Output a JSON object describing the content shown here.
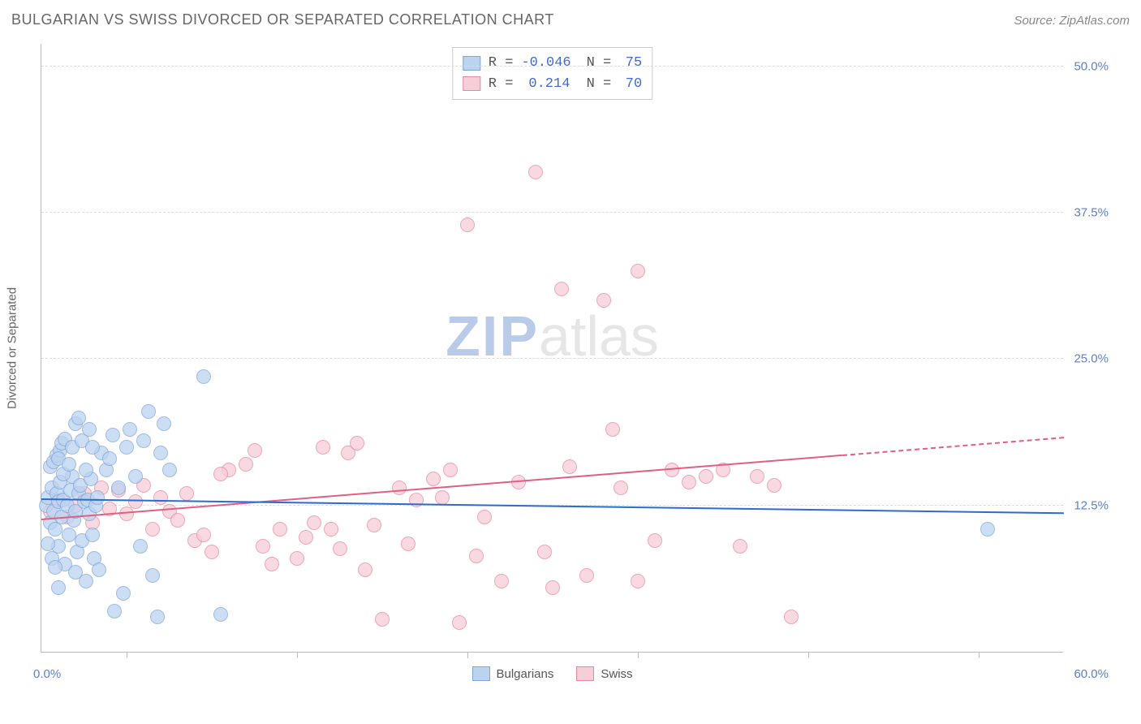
{
  "header": {
    "title": "BULGARIAN VS SWISS DIVORCED OR SEPARATED CORRELATION CHART",
    "source": "Source: ZipAtlas.com"
  },
  "watermark": {
    "part1": "ZIP",
    "part2": "atlas"
  },
  "axes": {
    "ylabel": "Divorced or Separated",
    "xlim": [
      0,
      60
    ],
    "ylim": [
      0,
      52
    ],
    "ytick_values": [
      12.5,
      25.0,
      37.5,
      50.0
    ],
    "ytick_labels": [
      "12.5%",
      "25.0%",
      "37.5%",
      "50.0%"
    ],
    "xtick_values": [
      5,
      15,
      25,
      35,
      45,
      55
    ],
    "xlabel_min": "0.0%",
    "xlabel_max": "60.0%"
  },
  "series": {
    "bulgarians": {
      "label": "Bulgarians",
      "fill": "#bcd3f0",
      "stroke": "#7fa6d9",
      "line_color": "#2e6bd1",
      "line_width": 2.5,
      "marker_radius": 9,
      "stats": {
        "R": "-0.046",
        "N": "75"
      },
      "regression": {
        "x1": 0,
        "y1": 13.0,
        "x2": 60,
        "y2": 11.8,
        "dash_from_x": null
      },
      "points": [
        [
          0.3,
          12.5
        ],
        [
          0.4,
          13.2
        ],
        [
          0.5,
          11.0
        ],
        [
          0.6,
          14.0
        ],
        [
          0.7,
          12.0
        ],
        [
          0.8,
          10.5
        ],
        [
          0.9,
          13.5
        ],
        [
          1.0,
          12.8
        ],
        [
          1.0,
          9.0
        ],
        [
          1.1,
          14.5
        ],
        [
          1.2,
          11.5
        ],
        [
          1.3,
          13.0
        ],
        [
          1.4,
          7.5
        ],
        [
          1.5,
          12.5
        ],
        [
          1.6,
          10.0
        ],
        [
          1.7,
          13.8
        ],
        [
          1.8,
          15.0
        ],
        [
          1.9,
          11.2
        ],
        [
          2.0,
          12.0
        ],
        [
          2.1,
          8.5
        ],
        [
          2.2,
          13.5
        ],
        [
          2.3,
          14.2
        ],
        [
          2.4,
          9.5
        ],
        [
          2.5,
          12.8
        ],
        [
          2.6,
          6.0
        ],
        [
          2.7,
          13.0
        ],
        [
          2.8,
          11.8
        ],
        [
          2.9,
          14.8
        ],
        [
          3.0,
          10.0
        ],
        [
          3.1,
          8.0
        ],
        [
          3.2,
          12.5
        ],
        [
          3.3,
          13.2
        ],
        [
          3.5,
          17.0
        ],
        [
          3.8,
          15.5
        ],
        [
          4.0,
          16.5
        ],
        [
          4.2,
          18.5
        ],
        [
          4.5,
          14.0
        ],
        [
          4.8,
          5.0
        ],
        [
          5.0,
          17.5
        ],
        [
          5.2,
          19.0
        ],
        [
          5.5,
          15.0
        ],
        [
          5.8,
          9.0
        ],
        [
          6.0,
          18.0
        ],
        [
          6.3,
          20.5
        ],
        [
          6.5,
          6.5
        ],
        [
          7.0,
          17.0
        ],
        [
          7.2,
          19.5
        ],
        [
          7.5,
          15.5
        ],
        [
          3.4,
          7.0
        ],
        [
          1.0,
          5.5
        ],
        [
          2.0,
          6.8
        ],
        [
          4.3,
          3.5
        ],
        [
          6.8,
          3.0
        ],
        [
          9.5,
          23.5
        ],
        [
          10.5,
          3.2
        ],
        [
          55.5,
          10.5
        ],
        [
          0.5,
          15.8
        ],
        [
          0.7,
          16.2
        ],
        [
          0.9,
          16.8
        ],
        [
          1.1,
          17.2
        ],
        [
          1.3,
          15.2
        ],
        [
          0.4,
          9.2
        ],
        [
          0.6,
          8.0
        ],
        [
          0.8,
          7.2
        ],
        [
          1.0,
          16.5
        ],
        [
          1.2,
          17.8
        ],
        [
          1.4,
          18.2
        ],
        [
          1.6,
          16.0
        ],
        [
          1.8,
          17.5
        ],
        [
          2.0,
          19.5
        ],
        [
          2.2,
          20.0
        ],
        [
          2.4,
          18.0
        ],
        [
          2.6,
          15.5
        ],
        [
          2.8,
          19.0
        ],
        [
          3.0,
          17.5
        ]
      ]
    },
    "swiss": {
      "label": "Swiss",
      "fill": "#f7cdd7",
      "stroke": "#e48aa0",
      "line_color": "#e15f82",
      "line_width": 2,
      "marker_radius": 9,
      "stats": {
        "R": "0.214",
        "N": "70"
      },
      "regression": {
        "x1": 0,
        "y1": 11.2,
        "x2": 60,
        "y2": 18.2,
        "dash_from_x": 47
      },
      "points": [
        [
          0.5,
          12.0
        ],
        [
          1.0,
          13.0
        ],
        [
          1.5,
          11.5
        ],
        [
          2.0,
          12.5
        ],
        [
          2.5,
          13.5
        ],
        [
          3.0,
          11.0
        ],
        [
          3.5,
          14.0
        ],
        [
          4.0,
          12.2
        ],
        [
          4.5,
          13.8
        ],
        [
          5.0,
          11.8
        ],
        [
          5.5,
          12.8
        ],
        [
          6.0,
          14.2
        ],
        [
          6.5,
          10.5
        ],
        [
          7.0,
          13.2
        ],
        [
          7.5,
          12.0
        ],
        [
          8.0,
          11.2
        ],
        [
          8.5,
          13.5
        ],
        [
          9.0,
          9.5
        ],
        [
          9.5,
          10.0
        ],
        [
          10.0,
          8.5
        ],
        [
          11.0,
          15.5
        ],
        [
          12.0,
          16.0
        ],
        [
          13.0,
          9.0
        ],
        [
          14.0,
          10.5
        ],
        [
          15.0,
          8.0
        ],
        [
          16.0,
          11.0
        ],
        [
          16.5,
          17.5
        ],
        [
          17.0,
          10.5
        ],
        [
          18.0,
          17.0
        ],
        [
          18.5,
          17.8
        ],
        [
          19.0,
          7.0
        ],
        [
          20.0,
          2.8
        ],
        [
          21.0,
          14.0
        ],
        [
          22.0,
          13.0
        ],
        [
          23.0,
          14.8
        ],
        [
          24.0,
          15.5
        ],
        [
          24.5,
          2.5
        ],
        [
          25.0,
          36.5
        ],
        [
          26.0,
          11.5
        ],
        [
          27.0,
          6.0
        ],
        [
          28.0,
          14.5
        ],
        [
          29.0,
          41.0
        ],
        [
          29.5,
          8.5
        ],
        [
          30.0,
          5.5
        ],
        [
          30.5,
          31.0
        ],
        [
          31.0,
          15.8
        ],
        [
          32.0,
          6.5
        ],
        [
          33.0,
          30.0
        ],
        [
          33.5,
          19.0
        ],
        [
          34.0,
          14.0
        ],
        [
          35.0,
          6.0
        ],
        [
          36.0,
          9.5
        ],
        [
          37.0,
          15.5
        ],
        [
          38.0,
          14.5
        ],
        [
          39.0,
          15.0
        ],
        [
          40.0,
          15.5
        ],
        [
          41.0,
          9.0
        ],
        [
          42.0,
          15.0
        ],
        [
          43.0,
          14.2
        ],
        [
          44.0,
          3.0
        ],
        [
          35.0,
          32.5
        ],
        [
          10.5,
          15.2
        ],
        [
          12.5,
          17.2
        ],
        [
          13.5,
          7.5
        ],
        [
          15.5,
          9.8
        ],
        [
          17.5,
          8.8
        ],
        [
          19.5,
          10.8
        ],
        [
          21.5,
          9.2
        ],
        [
          23.5,
          13.2
        ],
        [
          25.5,
          8.2
        ]
      ]
    }
  },
  "colors": {
    "grid": "#dddddd",
    "axis": "#bbbbbb",
    "text": "#666666",
    "tick_text": "#5b7fd1",
    "stat_val": "#4169d1",
    "background": "#ffffff"
  }
}
